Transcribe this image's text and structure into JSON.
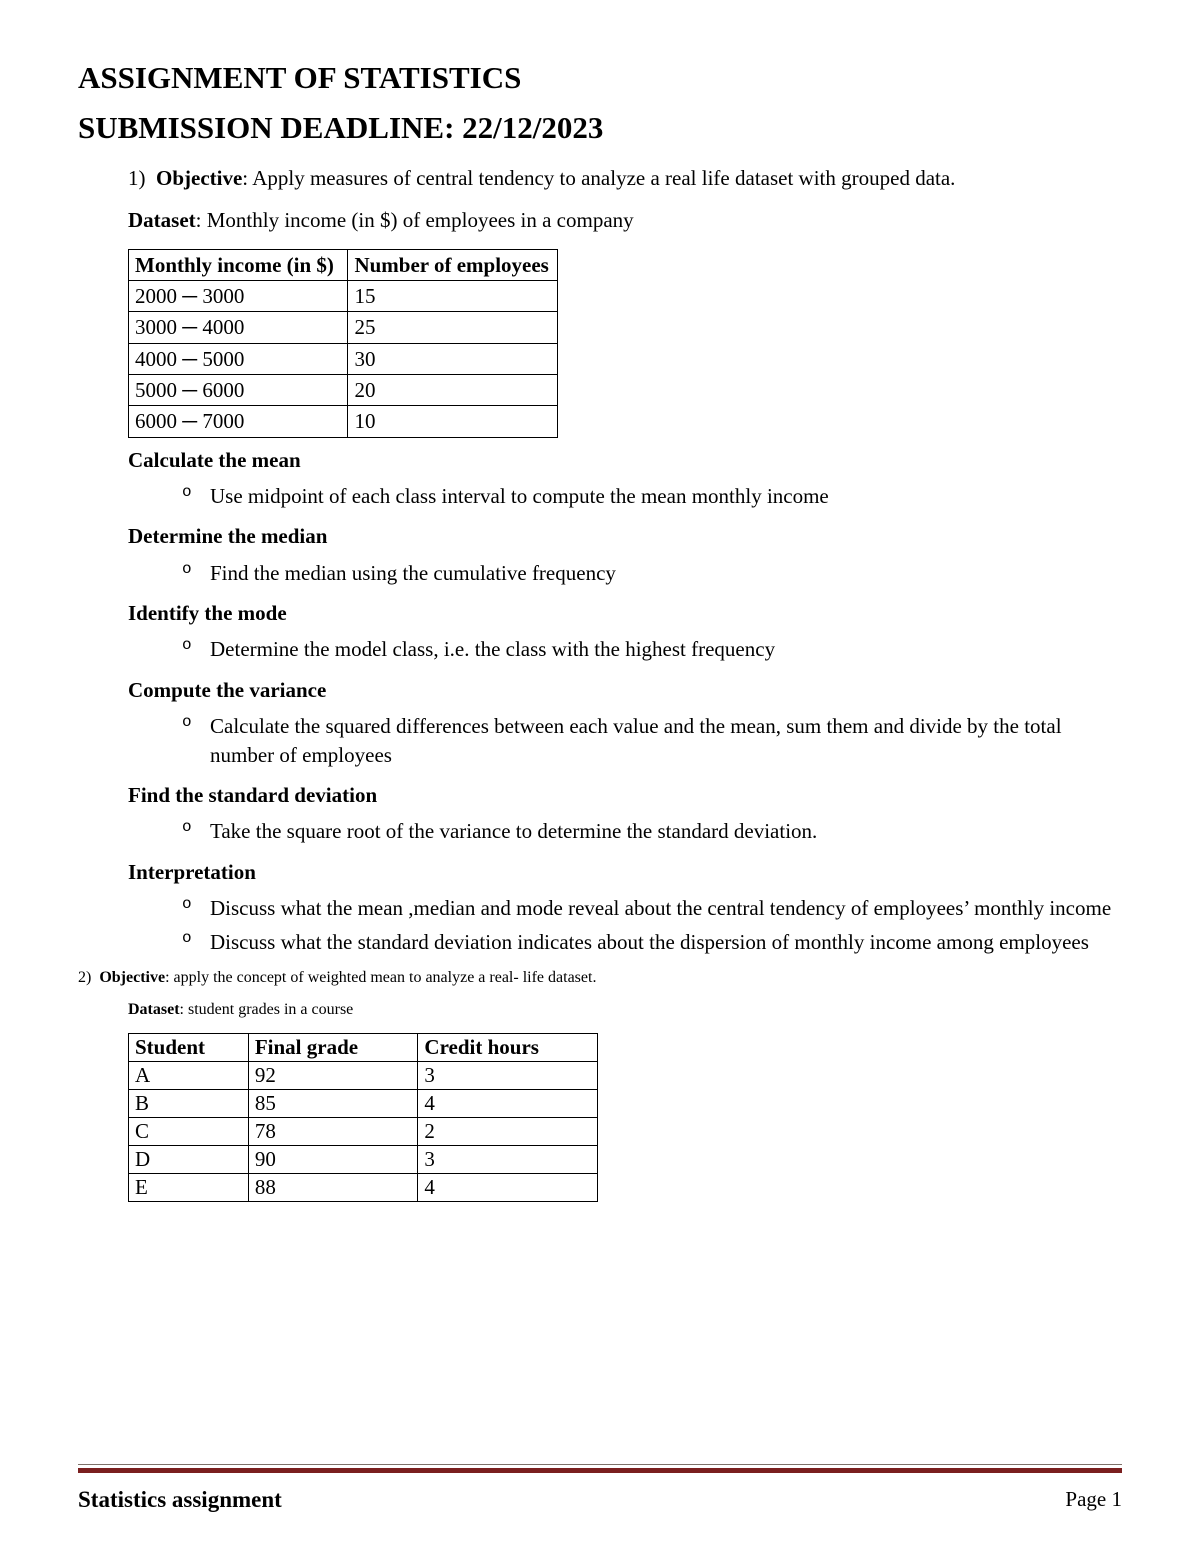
{
  "title1": "ASSIGNMENT OF STATISTICS",
  "title2": "SUBMISSION DEADLINE:   22/12/2023",
  "q1": {
    "num": "1)",
    "obj_label": "Objective",
    "obj_text": ": Apply measures of central tendency to analyze a real life dataset with grouped data.",
    "ds_label": "Dataset",
    "ds_text": ": Monthly income (in $) of employees in a company",
    "table": {
      "columns": [
        "Monthly income (in $)",
        "Number of employees"
      ],
      "rows": [
        [
          "2000 ─ 3000",
          "15"
        ],
        [
          "3000 ─ 4000",
          "25"
        ],
        [
          "4000 ─ 5000",
          "30"
        ],
        [
          "5000 ─ 6000",
          "20"
        ],
        [
          "6000 ─ 7000",
          "10"
        ]
      ],
      "col_widths": [
        "220px",
        "210px"
      ]
    },
    "sections": [
      {
        "head": "Calculate the mean",
        "items": [
          "Use midpoint of each class interval to compute the mean monthly income"
        ]
      },
      {
        "head": "Determine the median",
        "items": [
          "Find the median using the cumulative frequency"
        ]
      },
      {
        "head": "Identify the mode",
        "items": [
          "Determine the model class, i.e. the class with the highest frequency"
        ]
      },
      {
        "head": "Compute the variance",
        "items": [
          "Calculate the squared differences between each value and the mean, sum them and divide by the total number of employees"
        ]
      },
      {
        "head": "Find the standard deviation",
        "items": [
          "Take the square root of the variance to determine the standard deviation."
        ]
      },
      {
        "head": "Interpretation",
        "items": [
          "Discuss what the mean ,median and mode reveal about the central tendency of employees’ monthly income",
          "Discuss what the standard deviation indicates about the dispersion of monthly income among employees"
        ]
      }
    ]
  },
  "q2": {
    "num": "2)",
    "obj_label": "Objective",
    "obj_text": ": apply the concept of weighted mean to analyze a real- life dataset.",
    "ds_label": "Dataset",
    "ds_text": ": student grades in a course",
    "table": {
      "columns": [
        "Student",
        "Final grade",
        "Credit hours"
      ],
      "rows": [
        [
          "A",
          "92",
          "3"
        ],
        [
          "B",
          "85",
          "4"
        ],
        [
          "C",
          "78",
          "2"
        ],
        [
          "D",
          "90",
          "3"
        ],
        [
          "E",
          "88",
          "4"
        ]
      ],
      "col_widths": [
        "120px",
        "170px",
        "180px"
      ]
    }
  },
  "footer": {
    "title": "Statistics assignment",
    "page": "Page 1",
    "rule_top_color": "#7e716a",
    "rule_bottom_color": "#7a1f1f"
  }
}
